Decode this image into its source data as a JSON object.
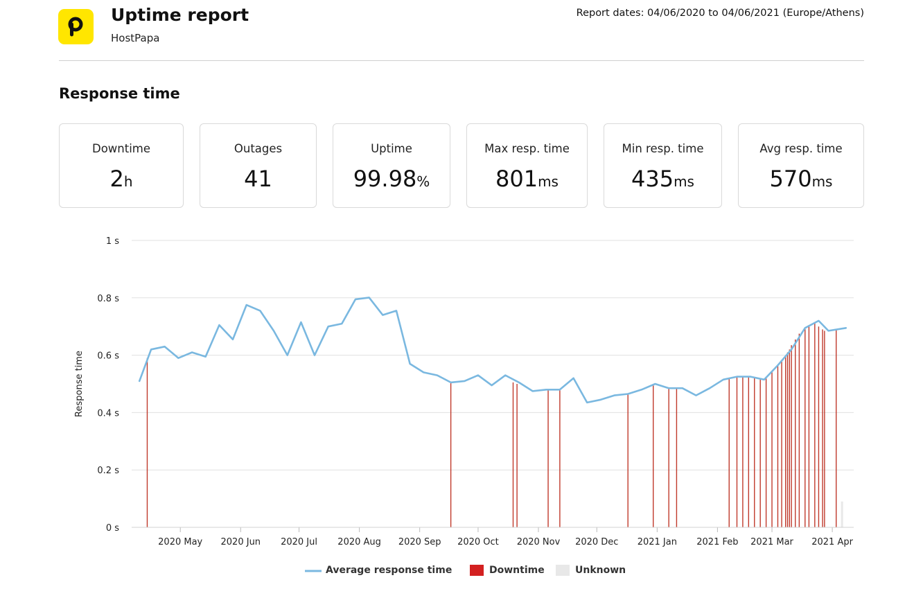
{
  "header": {
    "logo_letter": "p",
    "title": "Uptime report",
    "subtitle": "HostPapa",
    "report_dates": "Report dates: 04/06/2020 to 04/06/2021 (Europe/Athens)"
  },
  "section_title": "Response time",
  "stats": [
    {
      "label": "Downtime",
      "value": "2",
      "unit": "h"
    },
    {
      "label": "Outages",
      "value": "41",
      "unit": ""
    },
    {
      "label": "Uptime",
      "value": "99.98",
      "unit": "%"
    },
    {
      "label": "Max resp. time",
      "value": "801",
      "unit": "ms"
    },
    {
      "label": "Min resp. time",
      "value": "435",
      "unit": "ms"
    },
    {
      "label": "Avg resp. time",
      "value": "570",
      "unit": "ms"
    }
  ],
  "colors": {
    "line": "#7ab8e0",
    "downtime": "#c0392b",
    "downtime_legend": "#d32020",
    "unknown": "#e8e8e8",
    "grid": "#e0e0e0",
    "logo": "#ffe600"
  },
  "chart_data": {
    "type": "line",
    "ylabel": "Response time",
    "y_ticks": [
      {
        "value": 0,
        "label": "0 s"
      },
      {
        "value": 0.2,
        "label": "0.2 s"
      },
      {
        "value": 0.4,
        "label": "0.4 s"
      },
      {
        "value": 0.6,
        "label": "0.6 s"
      },
      {
        "value": 0.8,
        "label": "0.8 s"
      },
      {
        "value": 1.0,
        "label": "1 s"
      }
    ],
    "ylim": [
      0,
      1
    ],
    "xlim": [
      "2020-04-06",
      "2021-04-12"
    ],
    "x_ticks": [
      {
        "date": "2020-05-01",
        "label": "2020 May"
      },
      {
        "date": "2020-06-01",
        "label": "2020 Jun"
      },
      {
        "date": "2020-07-01",
        "label": "2020 Jul"
      },
      {
        "date": "2020-08-01",
        "label": "2020 Aug"
      },
      {
        "date": "2020-09-01",
        "label": "2020 Sep"
      },
      {
        "date": "2020-10-01",
        "label": "2020 Oct"
      },
      {
        "date": "2020-11-01",
        "label": "2020 Nov"
      },
      {
        "date": "2020-12-01",
        "label": "2020 Dec"
      },
      {
        "date": "2021-01-01",
        "label": "2021 Jan"
      },
      {
        "date": "2021-02-01",
        "label": "2021 Feb"
      },
      {
        "date": "2021-03-01",
        "label": "2021 Mar"
      },
      {
        "date": "2021-04-01",
        "label": "2021 Apr"
      }
    ],
    "legend": [
      {
        "label": "Average response time",
        "type": "line"
      },
      {
        "label": "Downtime",
        "type": "box"
      },
      {
        "label": "Unknown",
        "type": "box"
      }
    ],
    "series": [
      {
        "name": "Average response time",
        "points": [
          [
            "2020-04-10",
            0.51
          ],
          [
            "2020-04-16",
            0.62
          ],
          [
            "2020-04-23",
            0.63
          ],
          [
            "2020-04-30",
            0.59
          ],
          [
            "2020-05-07",
            0.61
          ],
          [
            "2020-05-14",
            0.595
          ],
          [
            "2020-05-21",
            0.705
          ],
          [
            "2020-05-28",
            0.655
          ],
          [
            "2020-06-04",
            0.775
          ],
          [
            "2020-06-11",
            0.755
          ],
          [
            "2020-06-18",
            0.685
          ],
          [
            "2020-06-25",
            0.6
          ],
          [
            "2020-07-02",
            0.715
          ],
          [
            "2020-07-09",
            0.6
          ],
          [
            "2020-07-16",
            0.7
          ],
          [
            "2020-07-23",
            0.71
          ],
          [
            "2020-07-30",
            0.795
          ],
          [
            "2020-08-06",
            0.801
          ],
          [
            "2020-08-13",
            0.74
          ],
          [
            "2020-08-20",
            0.755
          ],
          [
            "2020-08-27",
            0.57
          ],
          [
            "2020-09-03",
            0.54
          ],
          [
            "2020-09-10",
            0.53
          ],
          [
            "2020-09-17",
            0.505
          ],
          [
            "2020-09-24",
            0.51
          ],
          [
            "2020-10-01",
            0.53
          ],
          [
            "2020-10-08",
            0.495
          ],
          [
            "2020-10-15",
            0.53
          ],
          [
            "2020-10-22",
            0.505
          ],
          [
            "2020-10-29",
            0.475
          ],
          [
            "2020-11-05",
            0.48
          ],
          [
            "2020-11-12",
            0.48
          ],
          [
            "2020-11-19",
            0.52
          ],
          [
            "2020-11-26",
            0.435
          ],
          [
            "2020-12-03",
            0.445
          ],
          [
            "2020-12-10",
            0.46
          ],
          [
            "2020-12-17",
            0.465
          ],
          [
            "2020-12-24",
            0.48
          ],
          [
            "2020-12-31",
            0.5
          ],
          [
            "2021-01-07",
            0.485
          ],
          [
            "2021-01-14",
            0.485
          ],
          [
            "2021-01-21",
            0.46
          ],
          [
            "2021-01-28",
            0.485
          ],
          [
            "2021-02-04",
            0.515
          ],
          [
            "2021-02-11",
            0.525
          ],
          [
            "2021-02-18",
            0.525
          ],
          [
            "2021-02-25",
            0.515
          ],
          [
            "2021-03-04",
            0.565
          ],
          [
            "2021-03-11",
            0.62
          ],
          [
            "2021-03-18",
            0.695
          ],
          [
            "2021-03-25",
            0.72
          ],
          [
            "2021-03-30",
            0.685
          ],
          [
            "2021-04-08",
            0.695
          ]
        ]
      },
      {
        "name": "Downtime",
        "type": "bar",
        "events": [
          [
            "2020-04-14",
            0.59
          ],
          [
            "2020-09-17",
            0.505
          ],
          [
            "2020-10-19",
            0.505
          ],
          [
            "2020-10-21",
            0.5
          ],
          [
            "2020-11-06",
            0.48
          ],
          [
            "2020-11-12",
            0.48
          ],
          [
            "2020-12-17",
            0.465
          ],
          [
            "2020-12-30",
            0.5
          ],
          [
            "2021-01-07",
            0.485
          ],
          [
            "2021-01-11",
            0.485
          ],
          [
            "2021-02-07",
            0.52
          ],
          [
            "2021-02-11",
            0.525
          ],
          [
            "2021-02-14",
            0.525
          ],
          [
            "2021-02-17",
            0.525
          ],
          [
            "2021-02-20",
            0.52
          ],
          [
            "2021-02-23",
            0.515
          ],
          [
            "2021-02-26",
            0.525
          ],
          [
            "2021-03-01",
            0.545
          ],
          [
            "2021-03-04",
            0.565
          ],
          [
            "2021-03-06",
            0.58
          ],
          [
            "2021-03-08",
            0.6
          ],
          [
            "2021-03-09",
            0.61
          ],
          [
            "2021-03-10",
            0.62
          ],
          [
            "2021-03-11",
            0.635
          ],
          [
            "2021-03-13",
            0.655
          ],
          [
            "2021-03-15",
            0.675
          ],
          [
            "2021-03-18",
            0.695
          ],
          [
            "2021-03-20",
            0.705
          ],
          [
            "2021-03-23",
            0.71
          ],
          [
            "2021-03-25",
            0.7
          ],
          [
            "2021-03-27",
            0.69
          ],
          [
            "2021-03-28",
            0.685
          ],
          [
            "2021-04-03",
            0.69
          ]
        ]
      },
      {
        "name": "Unknown",
        "type": "bar",
        "events": [
          [
            "2021-04-06",
            0.09
          ]
        ]
      }
    ]
  }
}
